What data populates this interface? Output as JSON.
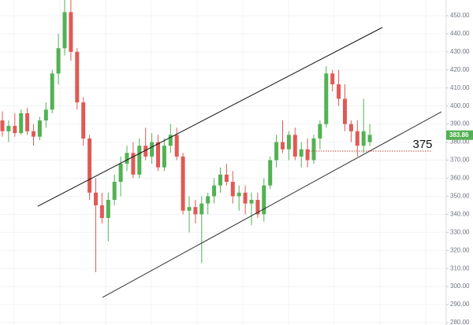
{
  "chart_data": {
    "type": "candlestick",
    "up_color": "#53b153",
    "down_color": "#e05a55",
    "grid": true,
    "ylim": [
      278.7,
      458.7
    ],
    "yticks": [
      {
        "value": 280,
        "label": "280.00"
      },
      {
        "value": 290,
        "label": "290.00"
      },
      {
        "value": 300,
        "label": "300.00"
      },
      {
        "value": 310,
        "label": "310.00"
      },
      {
        "value": 320,
        "label": "320.00"
      },
      {
        "value": 330,
        "label": "330.00"
      },
      {
        "value": 340,
        "label": "340.00"
      },
      {
        "value": 350,
        "label": "350.00"
      },
      {
        "value": 360,
        "label": "360.00"
      },
      {
        "value": 370,
        "label": "370.00"
      },
      {
        "value": 380,
        "label": "380.00"
      },
      {
        "value": 390,
        "label": "390.00"
      },
      {
        "value": 400,
        "label": "400.00"
      },
      {
        "value": 410,
        "label": "410.00"
      },
      {
        "value": 420,
        "label": "420.00"
      },
      {
        "value": 430,
        "label": "430.00"
      },
      {
        "value": 440,
        "label": "440.00"
      },
      {
        "value": 450,
        "label": "450.00"
      }
    ],
    "open": [
      392,
      386,
      389,
      385,
      396,
      386,
      383,
      392,
      398,
      418,
      432,
      452,
      430,
      402,
      382,
      352,
      345,
      338,
      348,
      358,
      368,
      374,
      362,
      378,
      372,
      380,
      366,
      378,
      384,
      372,
      342,
      344,
      340,
      346,
      350,
      356,
      362,
      358,
      350,
      352,
      346,
      348,
      340,
      356,
      370,
      380,
      376,
      384,
      372,
      376,
      370,
      382,
      390,
      418,
      412,
      404,
      390,
      386,
      378,
      380
    ],
    "high": [
      397,
      392,
      396,
      398,
      399,
      390,
      394,
      402,
      420,
      440,
      460,
      460,
      432,
      405,
      384,
      360,
      352,
      352,
      362,
      372,
      378,
      380,
      382,
      388,
      385,
      384,
      382,
      390,
      388,
      374,
      350,
      348,
      350,
      352,
      360,
      366,
      368,
      364,
      356,
      356,
      352,
      352,
      360,
      372,
      384,
      392,
      386,
      388,
      380,
      382,
      384,
      392,
      422,
      420,
      420,
      412,
      392,
      392,
      404,
      390
    ],
    "low": [
      383,
      380,
      383,
      384,
      384,
      378,
      381,
      388,
      396,
      412,
      428,
      425,
      398,
      378,
      348,
      308,
      335,
      325,
      345,
      350,
      364,
      360,
      360,
      370,
      368,
      364,
      364,
      374,
      370,
      340,
      330,
      335,
      313,
      340,
      346,
      352,
      356,
      346,
      342,
      340,
      334,
      338,
      336,
      354,
      366,
      374,
      370,
      370,
      366,
      366,
      368,
      376,
      388,
      408,
      400,
      386,
      380,
      372,
      374,
      378
    ],
    "close": [
      386,
      389,
      385,
      396,
      386,
      383,
      392,
      398,
      418,
      432,
      452,
      430,
      402,
      382,
      352,
      345,
      338,
      348,
      358,
      368,
      374,
      362,
      378,
      372,
      380,
      366,
      378,
      384,
      372,
      342,
      344,
      340,
      346,
      350,
      356,
      362,
      358,
      350,
      352,
      346,
      348,
      340,
      356,
      370,
      380,
      376,
      384,
      372,
      376,
      370,
      382,
      390,
      418,
      412,
      404,
      390,
      386,
      378,
      386,
      384
    ],
    "trendlines": [
      {
        "start": 344.5,
        "end": 443.5,
        "color": "#111111"
      },
      {
        "start": 294,
        "end": 396.8,
        "color": "#333333"
      }
    ],
    "level": {
      "value": 375,
      "label": "375",
      "color": "#b5473f"
    },
    "last_price": {
      "value": 383.86,
      "label": "383.86"
    }
  }
}
